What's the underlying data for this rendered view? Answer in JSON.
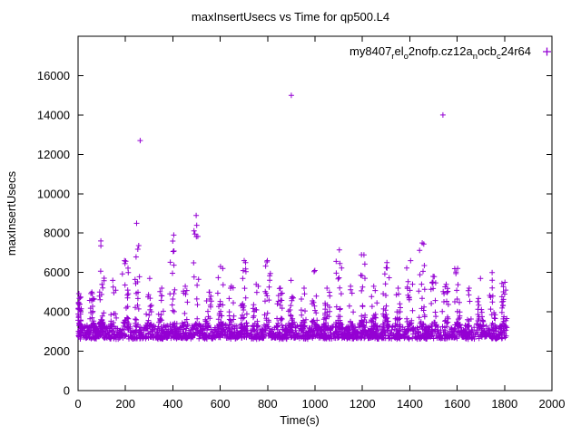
{
  "window": {
    "title": "maxInsertUsecs vs Time for qp500.L4"
  },
  "chart_data": {
    "type": "scatter",
    "title": "maxInsertUsecs vs Time for qp500.L4",
    "xlabel": "Time(s)",
    "ylabel": "maxInsertUsecs",
    "xlim": [
      0,
      2000
    ],
    "ylim": [
      0,
      18000
    ],
    "xticks": [
      0,
      200,
      400,
      600,
      800,
      1000,
      1200,
      1400,
      1600,
      1800,
      2000
    ],
    "yticks": [
      0,
      2000,
      4000,
      6000,
      8000,
      10000,
      12000,
      14000,
      16000
    ],
    "grid": false,
    "marker": "plus",
    "color": "#9400d3",
    "legend": {
      "position": "top-right",
      "label": "my8407_rel_o2nofp.cz12a_nocb_c24r64",
      "label_parts": [
        {
          "t": "my8407",
          "sub": false
        },
        {
          "t": "r",
          "sub": true
        },
        {
          "t": "el",
          "sub": false
        },
        {
          "t": "o",
          "sub": true
        },
        {
          "t": "2nofp.cz12a",
          "sub": false
        },
        {
          "t": "n",
          "sub": true
        },
        {
          "t": "ocb",
          "sub": false
        },
        {
          "t": "c",
          "sub": true
        },
        {
          "t": "24r64",
          "sub": false
        }
      ]
    },
    "seed": 42,
    "baseline": {
      "comment_visible_pattern": "dense band of points between ~2500 and ~3400 usecs across x=0..1810, densest 2700-3150, band top rises near every 100s interval",
      "x_range": [
        0,
        1810
      ],
      "y_range": [
        2500,
        3400
      ],
      "count": 1700
    },
    "startup_cluster": {
      "x_range": [
        0,
        14
      ],
      "y_range": [
        2800,
        5150
      ],
      "count": 38
    },
    "spikes": [
      [
        60,
        5000
      ],
      [
        100,
        7600
      ],
      [
        150,
        5600
      ],
      [
        200,
        6600
      ],
      [
        250,
        8500
      ],
      [
        300,
        5700
      ],
      [
        350,
        5200
      ],
      [
        400,
        7900
      ],
      [
        450,
        5300
      ],
      [
        500,
        8900
      ],
      [
        550,
        5000
      ],
      [
        600,
        6300
      ],
      [
        650,
        5300
      ],
      [
        700,
        6600
      ],
      [
        750,
        5400
      ],
      [
        800,
        6600
      ],
      [
        850,
        5200
      ],
      [
        900,
        5600
      ],
      [
        950,
        5200
      ],
      [
        1000,
        6100
      ],
      [
        1050,
        5200
      ],
      [
        1100,
        7150
      ],
      [
        1150,
        5300
      ],
      [
        1200,
        6900
      ],
      [
        1250,
        5300
      ],
      [
        1300,
        6500
      ],
      [
        1350,
        5200
      ],
      [
        1400,
        6600
      ],
      [
        1450,
        7500
      ],
      [
        1500,
        5800
      ],
      [
        1550,
        5400
      ],
      [
        1600,
        6200
      ],
      [
        1650,
        5200
      ],
      [
        1700,
        5700
      ],
      [
        1750,
        6000
      ],
      [
        1800,
        5500
      ]
    ],
    "outliers": [
      [
        262,
        12700
      ],
      [
        900,
        15000
      ],
      [
        1540,
        14000
      ]
    ]
  }
}
